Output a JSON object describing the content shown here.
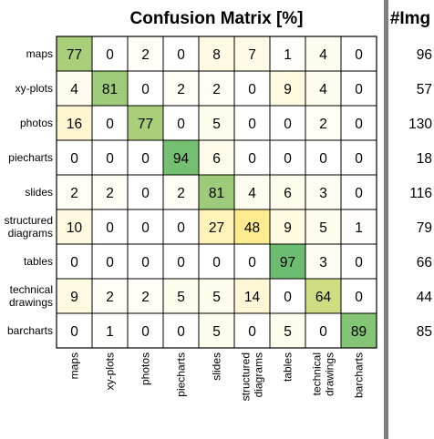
{
  "chart_data": {
    "type": "heatmap",
    "title": "Confusion Matrix [%]",
    "side_title": "#Img",
    "row_labels": [
      "maps",
      "xy-plots",
      "photos",
      "piecharts",
      "slides",
      "structured\ndiagrams",
      "tables",
      "technical\ndrawings",
      "barcharts"
    ],
    "column_labels": [
      "maps",
      "xy-plots",
      "photos",
      "piecharts",
      "slides",
      "structured\ndiagrams",
      "tables",
      "technical\ndrawings",
      "barcharts"
    ],
    "values": [
      [
        77,
        0,
        2,
        0,
        8,
        7,
        1,
        4,
        0
      ],
      [
        4,
        81,
        0,
        2,
        2,
        0,
        9,
        4,
        0
      ],
      [
        16,
        0,
        77,
        0,
        5,
        0,
        0,
        2,
        0
      ],
      [
        0,
        0,
        0,
        94,
        6,
        0,
        0,
        0,
        0
      ],
      [
        2,
        2,
        0,
        2,
        81,
        4,
        6,
        3,
        0
      ],
      [
        10,
        0,
        0,
        0,
        27,
        48,
        9,
        5,
        1
      ],
      [
        0,
        0,
        0,
        0,
        0,
        0,
        97,
        3,
        0
      ],
      [
        9,
        2,
        2,
        5,
        5,
        14,
        0,
        64,
        0
      ],
      [
        0,
        1,
        0,
        0,
        5,
        0,
        5,
        0,
        89
      ]
    ],
    "image_counts": [
      96,
      57,
      130,
      18,
      116,
      79,
      66,
      44,
      85
    ],
    "value_range": [
      0,
      100
    ],
    "colors": {
      "low": "#ffffff",
      "mid": "#fbe98a",
      "high": "#63b96f",
      "grid": "#000000",
      "divider": "#7f7f7f"
    }
  }
}
